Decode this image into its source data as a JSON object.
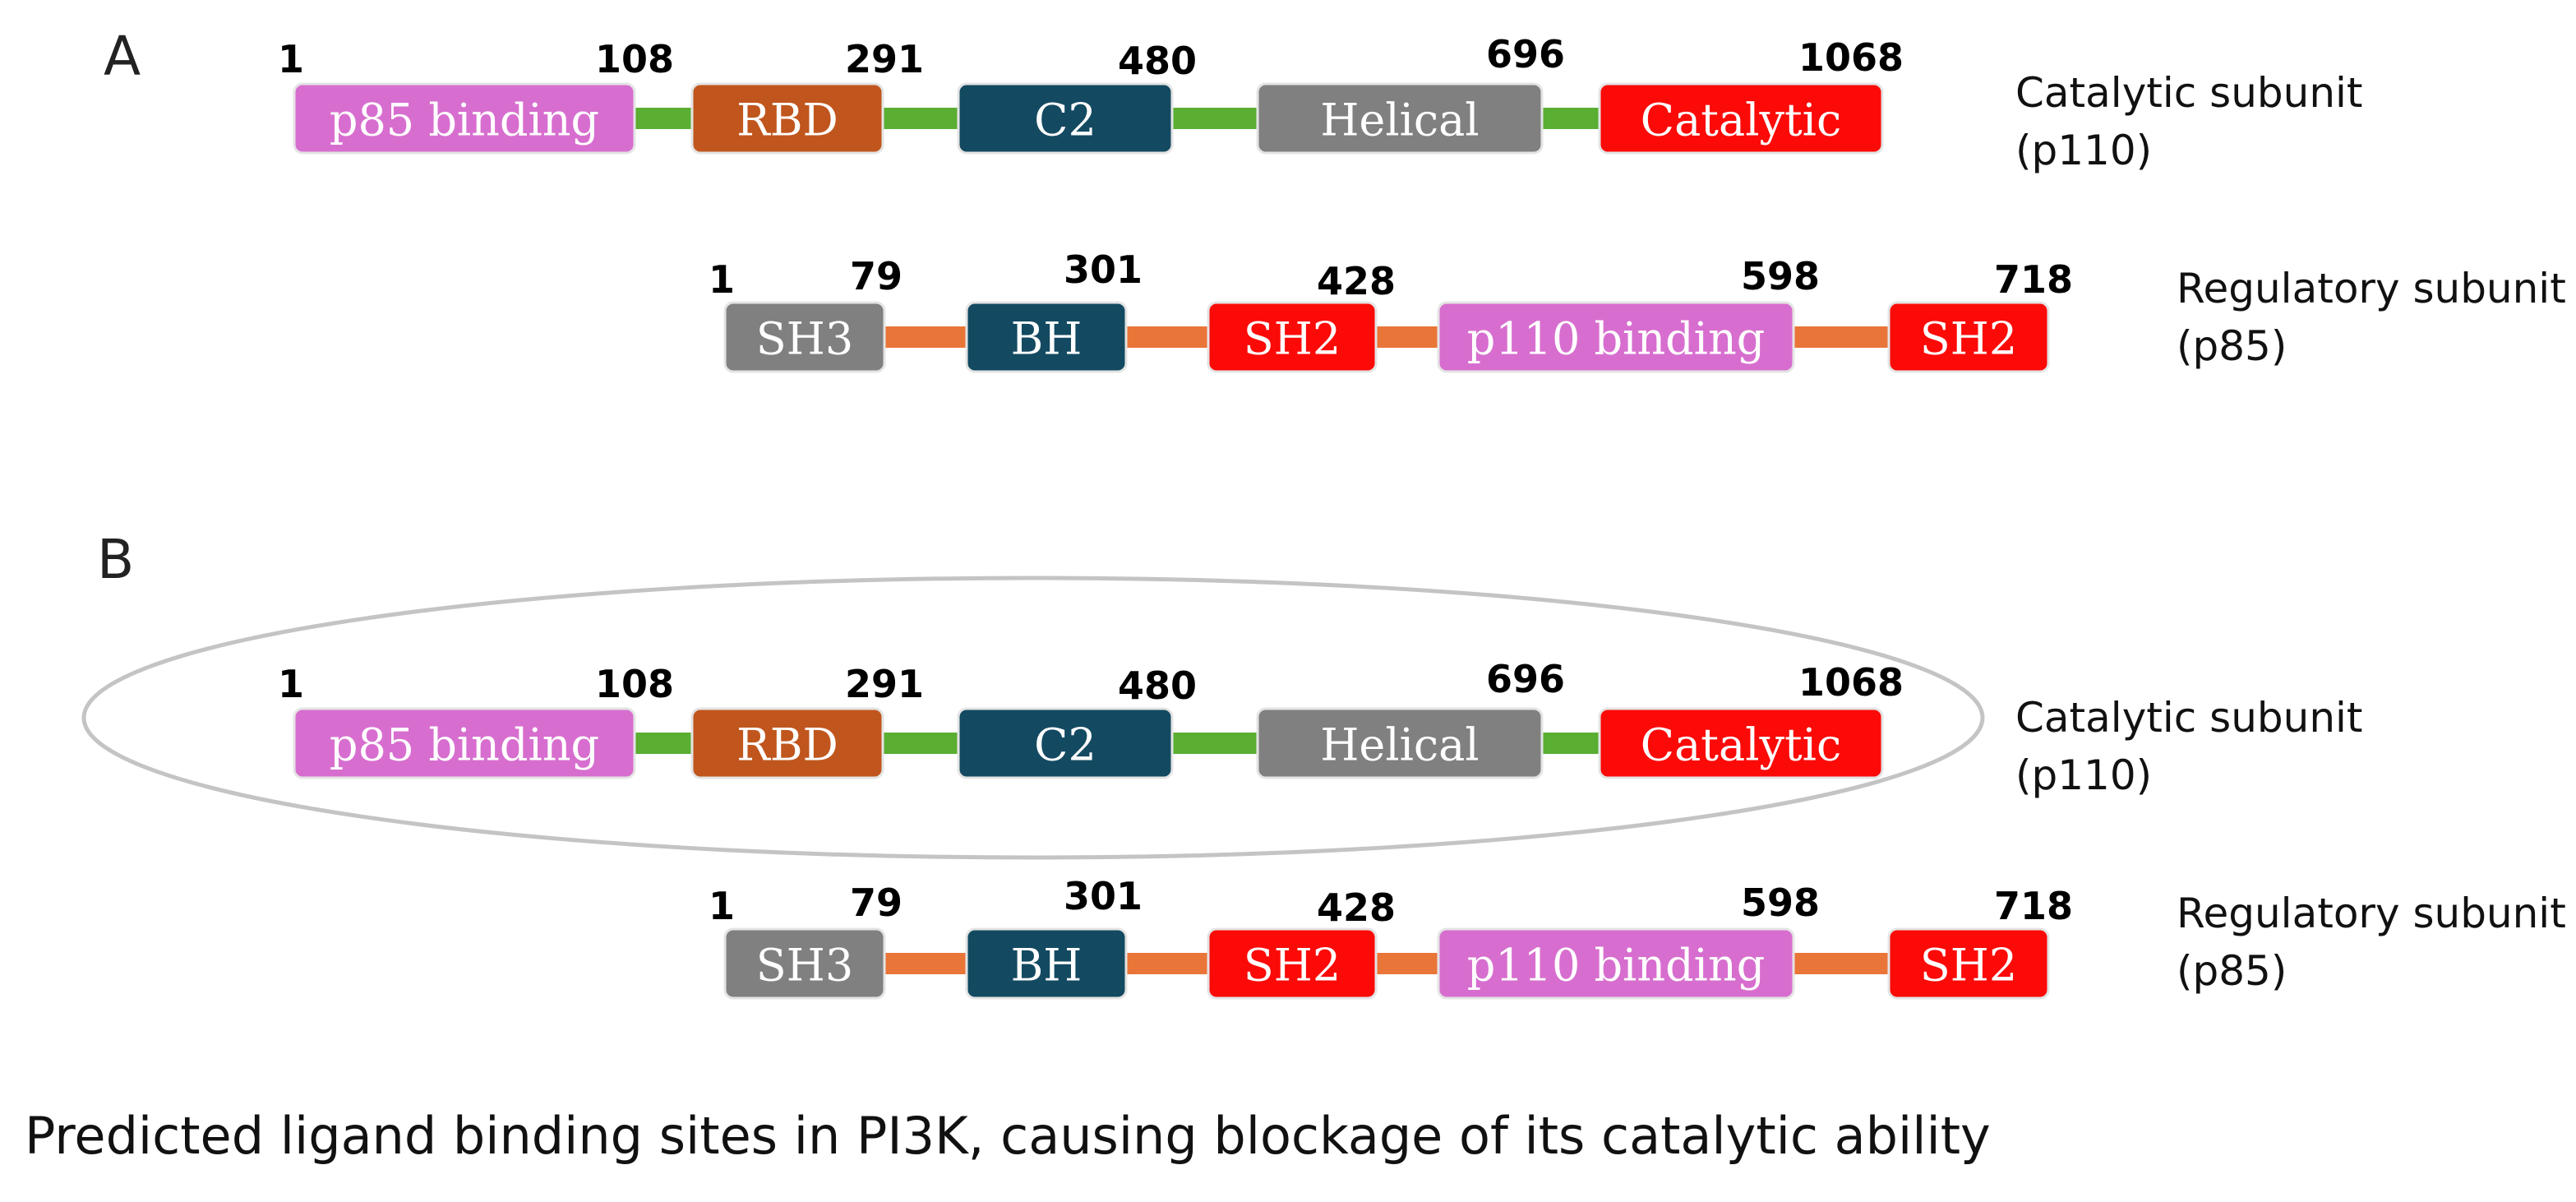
{
  "panels": [
    {
      "label": "A"
    },
    {
      "label": "B"
    }
  ],
  "subunits": {
    "catalytic": {
      "name": "Catalytic subunit",
      "code": "(p110)",
      "linker_color": "#5aae32",
      "positions": [
        "1",
        "108",
        "291",
        "480",
        "696",
        "1068"
      ],
      "domains": [
        {
          "label": "p85 binding",
          "color": "#d76ecf"
        },
        {
          "label": "RBD",
          "color": "#c0561d"
        },
        {
          "label": "C2",
          "color": "#134a61"
        },
        {
          "label": "Helical",
          "color": "#808080"
        },
        {
          "label": "Catalytic",
          "color": "#fb0a08"
        }
      ]
    },
    "regulatory": {
      "name": "Regulatory subunit",
      "code": "(p85)",
      "linker_color": "#ea7538",
      "positions": [
        "1",
        "79",
        "301",
        "428",
        "598",
        "718"
      ],
      "domains": [
        {
          "label": "SH3",
          "color": "#808080"
        },
        {
          "label": "BH",
          "color": "#134a61"
        },
        {
          "label": "SH2",
          "color": "#fb0a08"
        },
        {
          "label": "p110 binding",
          "color": "#d76ecf"
        },
        {
          "label": "SH2",
          "color": "#fb0a08"
        }
      ]
    }
  },
  "highlight": {
    "target": "catalytic subunit in panel B",
    "outline_color": "#c4c4c4"
  },
  "caption": "Predicted ligand binding sites in PI3K, causing blockage of its catalytic ability"
}
